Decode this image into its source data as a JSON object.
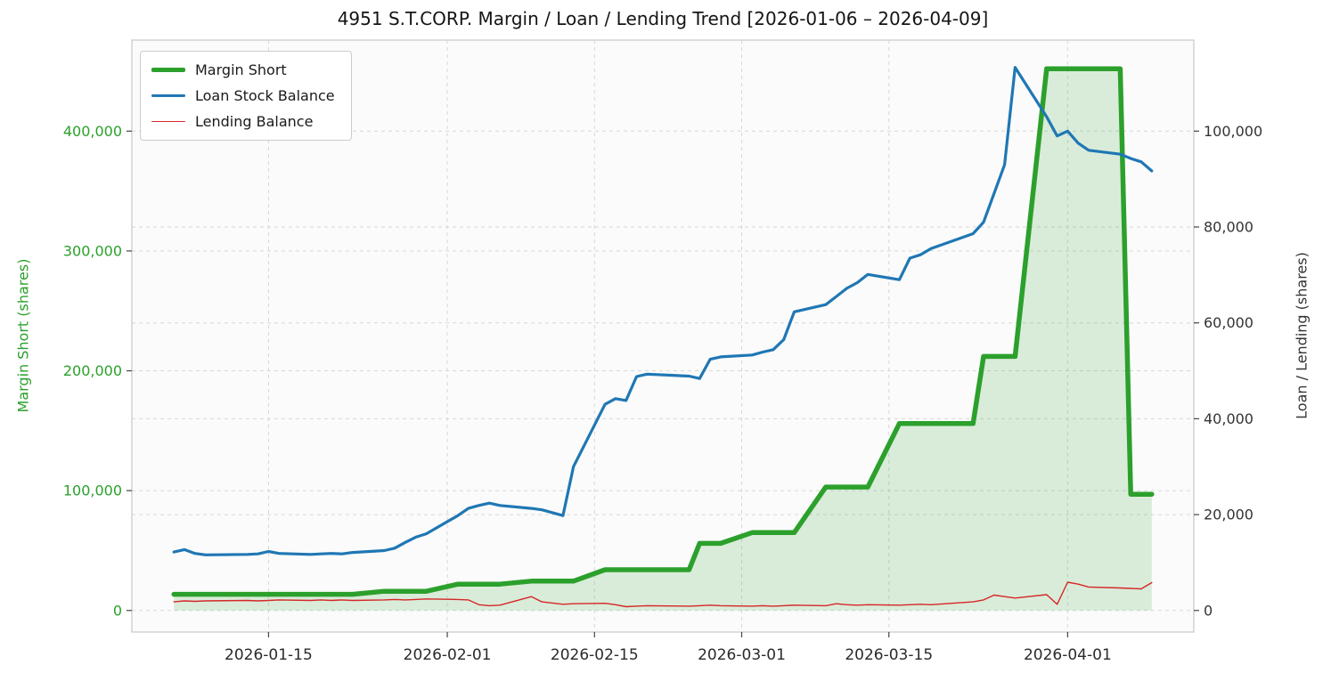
{
  "title": "4951 S.T.CORP. Margin / Loan / Lending Trend [2026-01-06 – 2026-04-09]",
  "chart_data": {
    "type": "line",
    "x_range": [
      "2026-01-06",
      "2026-04-09"
    ],
    "x_ticks": [
      "2026-01-15",
      "2026-02-01",
      "2026-02-15",
      "2026-03-01",
      "2026-03-15",
      "2026-04-01"
    ],
    "grid": true,
    "legend_position": "upper-left",
    "left_axis": {
      "label": "Margin Short (shares)",
      "ticks": [
        0,
        100000,
        200000,
        300000,
        400000
      ],
      "lim": [
        -18000,
        476000
      ],
      "color": "#2ca02c"
    },
    "right_axis": {
      "label": "Loan / Lending (shares)",
      "ticks": [
        0,
        20000,
        40000,
        60000,
        80000,
        100000
      ],
      "lim": [
        -4500,
        119000
      ],
      "color": "#333333"
    },
    "x_dates": [
      "2026-01-06",
      "2026-01-07",
      "2026-01-08",
      "2026-01-09",
      "2026-01-13",
      "2026-01-14",
      "2026-01-15",
      "2026-01-16",
      "2026-01-19",
      "2026-01-20",
      "2026-01-21",
      "2026-01-22",
      "2026-01-23",
      "2026-01-26",
      "2026-01-27",
      "2026-01-28",
      "2026-01-29",
      "2026-01-30",
      "2026-02-02",
      "2026-02-03",
      "2026-02-04",
      "2026-02-05",
      "2026-02-06",
      "2026-02-09",
      "2026-02-10",
      "2026-02-12",
      "2026-02-13",
      "2026-02-16",
      "2026-02-17",
      "2026-02-18",
      "2026-02-19",
      "2026-02-20",
      "2026-02-24",
      "2026-02-25",
      "2026-02-26",
      "2026-02-27",
      "2026-03-02",
      "2026-03-03",
      "2026-03-04",
      "2026-03-05",
      "2026-03-06",
      "2026-03-09",
      "2026-03-10",
      "2026-03-11",
      "2026-03-12",
      "2026-03-13",
      "2026-03-16",
      "2026-03-17",
      "2026-03-18",
      "2026-03-19",
      "2026-03-23",
      "2026-03-24",
      "2026-03-25",
      "2026-03-26",
      "2026-03-27",
      "2026-03-30",
      "2026-03-31",
      "2026-04-01",
      "2026-04-02",
      "2026-04-03",
      "2026-04-06",
      "2026-04-07",
      "2026-04-08",
      "2026-04-09"
    ],
    "series": [
      {
        "name": "Margin Short",
        "axis": "left",
        "color": "#2ca02c",
        "width": 5.5,
        "fill": true,
        "fill_opacity": 0.16,
        "values": [
          13500,
          13500,
          13500,
          13500,
          13500,
          13500,
          13500,
          13500,
          13500,
          13500,
          13500,
          13500,
          13500,
          16000,
          16000,
          16000,
          16000,
          16000,
          22000,
          22000,
          22000,
          22000,
          22000,
          24500,
          24500,
          24500,
          24500,
          34000,
          34000,
          34000,
          34000,
          34000,
          34000,
          56000,
          56000,
          56000,
          65000,
          65000,
          65000,
          65000,
          65000,
          103000,
          103000,
          103000,
          103000,
          103000,
          156000,
          156000,
          156000,
          156000,
          156000,
          212000,
          212000,
          212000,
          212000,
          452000,
          452000,
          452000,
          452000,
          452000,
          452000,
          97000,
          97000,
          97000
        ]
      },
      {
        "name": "Loan Stock Balance",
        "axis": "right",
        "color": "#1f77b4",
        "width": 3.2,
        "fill": false,
        "values": [
          12200,
          12700,
          11900,
          11600,
          11700,
          11800,
          12300,
          11900,
          11700,
          11800,
          11900,
          11800,
          12100,
          12500,
          13000,
          14200,
          15300,
          16000,
          19800,
          21300,
          21900,
          22400,
          21900,
          21300,
          21000,
          19800,
          30000,
          43000,
          44200,
          43800,
          48800,
          49300,
          48900,
          48400,
          52400,
          52900,
          53300,
          53900,
          54400,
          56500,
          62300,
          63800,
          65500,
          67200,
          68400,
          70100,
          69000,
          73500,
          74200,
          75500,
          78600,
          81000,
          87000,
          93000,
          113300,
          103000,
          99000,
          100000,
          97500,
          96000,
          95200,
          94300,
          93600,
          91700
        ]
      },
      {
        "name": "Lending Balance",
        "axis": "right",
        "color": "#d62728",
        "width": 1.4,
        "fill": false,
        "values": [
          1800,
          2000,
          1900,
          2000,
          2100,
          2000,
          2100,
          2200,
          2100,
          2200,
          2100,
          2200,
          2100,
          2200,
          2300,
          2200,
          2300,
          2400,
          2300,
          2200,
          1200,
          1000,
          1100,
          2900,
          1800,
          1300,
          1400,
          1500,
          1200,
          800,
          900,
          1000,
          900,
          1000,
          1100,
          1000,
          900,
          1000,
          900,
          1000,
          1100,
          1000,
          1400,
          1200,
          1100,
          1200,
          1100,
          1200,
          1300,
          1200,
          1800,
          2200,
          3200,
          2900,
          2600,
          3300,
          1300,
          5900,
          5500,
          4900,
          4700,
          4600,
          4500,
          5800
        ]
      }
    ]
  }
}
